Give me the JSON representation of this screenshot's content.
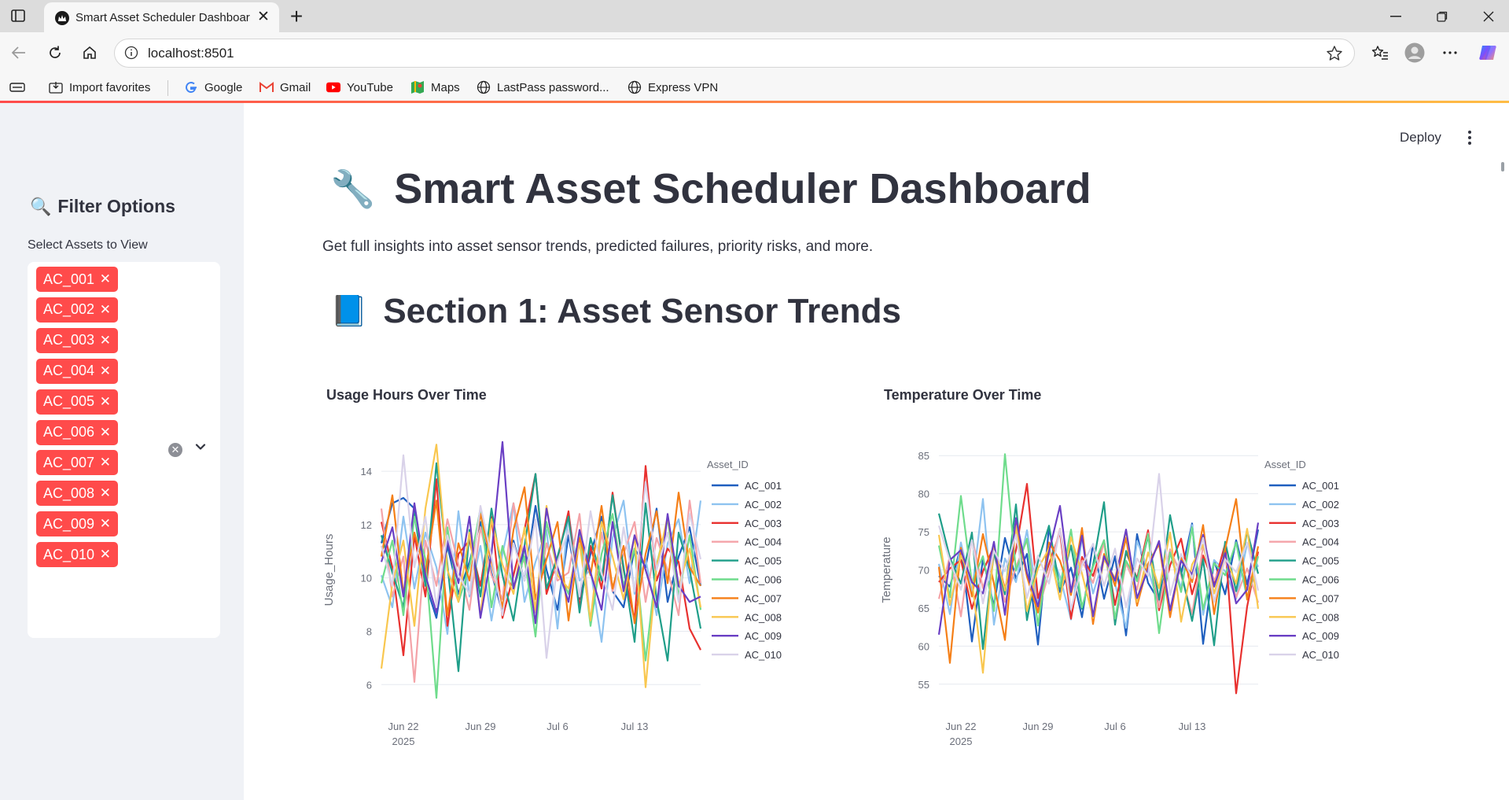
{
  "browser": {
    "tab_title": "Smart Asset Scheduler Dashboard",
    "url": "localhost:8501",
    "bookmarks": [
      {
        "label": "Import favorites",
        "icon": "import-icon"
      },
      {
        "label": "Google",
        "icon": "google-icon"
      },
      {
        "label": "Gmail",
        "icon": "gmail-icon"
      },
      {
        "label": "YouTube",
        "icon": "youtube-icon"
      },
      {
        "label": "Maps",
        "icon": "maps-icon"
      },
      {
        "label": "LastPass password...",
        "icon": "globe-icon"
      },
      {
        "label": "Express VPN",
        "icon": "globe-icon"
      }
    ]
  },
  "app": {
    "deploy_label": "Deploy",
    "accent_color": "#ff4b4b",
    "sidebar": {
      "title_icon": "🔍",
      "title": "Filter Options",
      "select_label": "Select Assets to View",
      "selected_assets": [
        "AC_001",
        "AC_002",
        "AC_003",
        "AC_004",
        "AC_005",
        "AC_006",
        "AC_007",
        "AC_008",
        "AC_009",
        "AC_010"
      ]
    },
    "title_icon": "🔧",
    "title": "Smart Asset Scheduler Dashboard",
    "intro": "Get full insights into asset sensor trends, predicted failures, priority risks, and more.",
    "section1_icon": "📘",
    "section1_title": "Section 1: Asset Sensor Trends"
  },
  "chart_data": [
    {
      "type": "line",
      "title": "Usage Hours Over Time",
      "xlabel": "Date",
      "ylabel": "Usage_Hours",
      "x_start": "2025-06-20",
      "x_end": "2025-07-19",
      "x_ticks": [
        {
          "date": "2025-06-22",
          "label": "Jun 22",
          "sublabel": "2025"
        },
        {
          "date": "2025-06-29",
          "label": "Jun 29",
          "sublabel": ""
        },
        {
          "date": "2025-07-06",
          "label": "Jul 6",
          "sublabel": ""
        },
        {
          "date": "2025-07-13",
          "label": "Jul 13",
          "sublabel": ""
        }
      ],
      "y_ticks": [
        6,
        8,
        10,
        12,
        14
      ],
      "ylim": [
        5.3,
        15.3
      ],
      "legend_title": "Asset_ID",
      "legend_position": "right",
      "series": [
        {
          "name": "AC_001",
          "color": "#1f5fbf",
          "values": [
            11.3,
            12.8,
            13.0,
            12.6,
            9.8,
            8.5,
            11.2,
            9.4,
            10.6,
            12.1,
            10.2,
            8.7,
            11.4,
            9.9,
            12.7,
            10.3,
            8.8,
            11.6,
            9.2,
            10.9,
            12.3,
            9.5,
            8.9,
            11.1,
            10.4,
            12.6,
            9.1,
            10.8,
            11.9,
            9.7
          ]
        },
        {
          "name": "AC_002",
          "color": "#8ec3f0",
          "values": [
            10.1,
            8.9,
            12.3,
            9.6,
            11.7,
            10.4,
            7.9,
            12.5,
            9.3,
            11.2,
            8.4,
            10.9,
            12.8,
            9.1,
            10.6,
            11.8,
            8.1,
            12.4,
            9.9,
            10.3,
            7.6,
            11.5,
            12.9,
            9.4,
            10.7,
            8.6,
            11.3,
            12.2,
            9.8,
            12.9
          ]
        },
        {
          "name": "AC_003",
          "color": "#e8312f",
          "values": [
            12.1,
            10.4,
            7.1,
            11.6,
            9.3,
            13.7,
            8.2,
            10.9,
            11.4,
            9.7,
            12.3,
            8.5,
            10.1,
            11.8,
            13.9,
            9.4,
            10.7,
            12.5,
            8.9,
            11.2,
            9.6,
            13.2,
            10.3,
            8.4,
            14.2,
            9.9,
            11.1,
            10.6,
            8.1,
            7.3
          ]
        },
        {
          "name": "AC_004",
          "color": "#f4a3a8",
          "values": [
            12.6,
            9.3,
            10.8,
            6.1,
            11.4,
            9.7,
            12.2,
            10.5,
            8.8,
            11.9,
            10.1,
            9.2,
            12.8,
            10.6,
            8.7,
            11.3,
            9.9,
            10.2,
            12.4,
            8.3,
            11.7,
            9.5,
            10.9,
            12.1,
            9.1,
            11.5,
            10.3,
            8.6,
            12.9,
            9.8
          ]
        },
        {
          "name": "AC_005",
          "color": "#1f9e89",
          "values": [
            11.6,
            10.2,
            8.9,
            12.4,
            9.7,
            14.3,
            10.5,
            6.5,
            11.8,
            9.3,
            12.6,
            10.1,
            8.4,
            11.2,
            13.9,
            9.6,
            10.8,
            12.3,
            8.7,
            11.5,
            9.9,
            13.1,
            10.4,
            7.6,
            12.8,
            9.2,
            6.9,
            11.7,
            10.3,
            8.1
          ]
        },
        {
          "name": "AC_006",
          "color": "#6fdc8c",
          "values": [
            9.8,
            11.4,
            8.6,
            12.3,
            10.7,
            5.5,
            11.9,
            9.1,
            10.4,
            12.6,
            8.9,
            11.2,
            9.6,
            10.8,
            7.8,
            12.1,
            10.3,
            9.4,
            11.7,
            8.2,
            10.9,
            12.4,
            9.7,
            11.1,
            6.9,
            10.5,
            12.2,
            9.3,
            11.6,
            8.8
          ]
        },
        {
          "name": "AC_007",
          "color": "#f57f17",
          "values": [
            10.8,
            13.1,
            9.4,
            11.7,
            10.2,
            12.9,
            8.6,
            11.3,
            9.9,
            12.4,
            10.6,
            8.9,
            11.8,
            13.4,
            9.2,
            10.7,
            12.1,
            8.4,
            11.5,
            10.1,
            12.7,
            9.6,
            11.2,
            8.3,
            10.9,
            12.5,
            9.8,
            13.2,
            10.4,
            9.7
          ]
        },
        {
          "name": "AC_008",
          "color": "#f9c74f",
          "values": [
            6.6,
            9.8,
            11.4,
            8.2,
            12.6,
            15.0,
            10.3,
            9.1,
            11.7,
            8.6,
            12.2,
            10.5,
            9.4,
            11.9,
            8.8,
            12.7,
            10.1,
            9.6,
            11.3,
            8.4,
            12.1,
            10.8,
            9.2,
            11.6,
            5.9,
            10.4,
            12.3,
            9.7,
            11.1,
            8.9
          ]
        },
        {
          "name": "AC_009",
          "color": "#6a3fc4",
          "values": [
            10.6,
            11.9,
            9.3,
            12.8,
            10.1,
            8.7,
            11.4,
            9.8,
            12.3,
            8.5,
            10.9,
            15.1,
            9.6,
            11.2,
            8.3,
            12.6,
            10.4,
            9.1,
            11.8,
            10.2,
            8.8,
            12.1,
            9.5,
            11.6,
            10.3,
            8.9,
            12.4,
            9.7,
            9.1,
            9.3
          ]
        },
        {
          "name": "AC_010",
          "color": "#d9d2e9",
          "values": [
            11.2,
            9.7,
            14.6,
            10.4,
            12.3,
            8.9,
            11.6,
            10.1,
            9.4,
            12.7,
            10.8,
            8.6,
            11.3,
            9.9,
            12.2,
            7.0,
            10.6,
            11.8,
            9.3,
            12.5,
            10.2,
            8.8,
            11.9,
            9.5,
            13.6,
            10.3,
            11.7,
            9.1,
            12.4,
            10.7
          ]
        }
      ]
    },
    {
      "type": "line",
      "title": "Temperature Over Time",
      "xlabel": "Date",
      "ylabel": "Temperature",
      "x_start": "2025-06-20",
      "x_end": "2025-07-19",
      "x_ticks": [
        {
          "date": "2025-06-22",
          "label": "Jun 22",
          "sublabel": "2025"
        },
        {
          "date": "2025-06-29",
          "label": "Jun 29",
          "sublabel": ""
        },
        {
          "date": "2025-07-06",
          "label": "Jul 6",
          "sublabel": ""
        },
        {
          "date": "2025-07-13",
          "label": "Jul 13",
          "sublabel": ""
        }
      ],
      "y_ticks": [
        55,
        60,
        65,
        70,
        75,
        80,
        85
      ],
      "ylim": [
        52.5,
        87.5
      ],
      "legend_title": "Asset_ID",
      "legend_position": "right",
      "series": [
        {
          "name": "AC_001",
          "color": "#1f5fbf",
          "values": [
            69.2,
            67.8,
            73.1,
            60.6,
            71.4,
            65.3,
            74.2,
            68.9,
            72.1,
            60.2,
            75.6,
            67.1,
            70.3,
            63.8,
            73.4,
            66.2,
            71.8,
            61.4,
            74.7,
            68.3,
            65.9,
            72.6,
            69.4,
            76.1,
            60.3,
            71.2,
            66.8,
            73.9,
            68.1,
            75.3
          ]
        },
        {
          "name": "AC_002",
          "color": "#8ec3f0",
          "values": [
            70.8,
            64.2,
            73.6,
            67.1,
            79.3,
            62.8,
            71.5,
            68.4,
            75.2,
            65.7,
            72.9,
            69.1,
            63.5,
            74.3,
            66.9,
            71.6,
            68.2,
            62.4,
            73.8,
            70.1,
            65.3,
            72.4,
            67.6,
            75.9,
            64.1,
            71.3,
            69.8,
            66.2,
            73.5,
            70.4
          ]
        },
        {
          "name": "AC_003",
          "color": "#e8312f",
          "values": [
            68.4,
            70.2,
            71.3,
            64.9,
            69.8,
            73.1,
            67.5,
            72.6,
            81.3,
            66.3,
            70.8,
            74.9,
            63.6,
            71.7,
            69.2,
            73.8,
            65.4,
            72.3,
            68.9,
            75.2,
            64.7,
            70.6,
            74.1,
            66.8,
            71.9,
            68.1,
            73.4,
            53.8,
            65.2,
            72.4
          ]
        },
        {
          "name": "AC_004",
          "color": "#f4a3a8",
          "values": [
            66.2,
            71.8,
            63.9,
            74.3,
            67.6,
            72.1,
            65.8,
            70.4,
            73.9,
            64.5,
            69.7,
            75.4,
            66.9,
            71.2,
            68.3,
            73.6,
            62.9,
            70.9,
            67.4,
            74.8,
            65.1,
            72.7,
            69.3,
            64.2,
            73.1,
            68.6,
            71.5,
            66.4,
            70.2,
            65.7
          ]
        },
        {
          "name": "AC_005",
          "color": "#1f9e89",
          "values": [
            77.4,
            71.6,
            68.2,
            74.9,
            59.6,
            72.3,
            66.8,
            78.6,
            63.4,
            71.1,
            75.8,
            67.5,
            73.2,
            64.9,
            70.6,
            78.9,
            62.8,
            72.5,
            68.7,
            74.4,
            66.1,
            77.2,
            69.8,
            63.3,
            71.4,
            60.1,
            73.7,
            67.2,
            75.1,
            69.5
          ]
        },
        {
          "name": "AC_006",
          "color": "#6fdc8c",
          "values": [
            73.2,
            66.4,
            79.7,
            68.3,
            71.8,
            64.6,
            85.2,
            69.9,
            74.1,
            62.7,
            72.6,
            67.8,
            75.3,
            65.1,
            70.4,
            73.9,
            63.6,
            71.2,
            68.5,
            74.7,
            61.7,
            72.3,
            67.1,
            75.6,
            64.8,
            70.9,
            69.3,
            73.6,
            66.2,
            71.8
          ]
        },
        {
          "name": "AC_007",
          "color": "#f57f17",
          "values": [
            70.4,
            57.8,
            72.9,
            66.5,
            74.7,
            68.2,
            60.8,
            76.3,
            69.1,
            64.4,
            73.6,
            71.2,
            66.7,
            75.5,
            62.9,
            72.1,
            67.9,
            74.2,
            65.3,
            70.8,
            73.4,
            63.8,
            71.6,
            68.4,
            75.9,
            64.2,
            72.7,
            79.3,
            66.1,
            73.1
          ]
        },
        {
          "name": "AC_008",
          "color": "#f9c74f",
          "values": [
            74.6,
            65.4,
            71.9,
            68.7,
            56.5,
            73.1,
            67.3,
            75.8,
            64.6,
            70.2,
            72.8,
            66.1,
            74.3,
            69.5,
            63.7,
            71.4,
            68.9,
            75.1,
            65.8,
            72.3,
            67.6,
            74.9,
            63.2,
            70.7,
            73.3,
            66.9,
            71.8,
            68.2,
            75.4,
            64.9
          ]
        },
        {
          "name": "AC_009",
          "color": "#6a3fc4",
          "values": [
            61.5,
            71.3,
            72.6,
            68.4,
            66.9,
            73.7,
            64.1,
            76.8,
            69.6,
            65.2,
            72.4,
            78.4,
            67.1,
            74.5,
            63.9,
            71.8,
            68.6,
            75.3,
            66.3,
            70.1,
            73.8,
            64.7,
            71.2,
            69.4,
            74.6,
            67.8,
            72.2,
            65.6,
            67.4,
            76.2
          ]
        },
        {
          "name": "AC_010",
          "color": "#d9d2e9",
          "values": [
            75.8,
            71.2,
            67.4,
            73.9,
            65.6,
            72.5,
            69.8,
            74.6,
            66.3,
            71.9,
            68.2,
            75.3,
            64.8,
            70.6,
            73.4,
            67.9,
            72.8,
            65.1,
            71.5,
            69.2,
            82.6,
            66.7,
            72.1,
            68.9,
            74.2,
            65.8,
            71.4,
            69.7,
            73.6,
            67.3
          ]
        }
      ]
    }
  ]
}
